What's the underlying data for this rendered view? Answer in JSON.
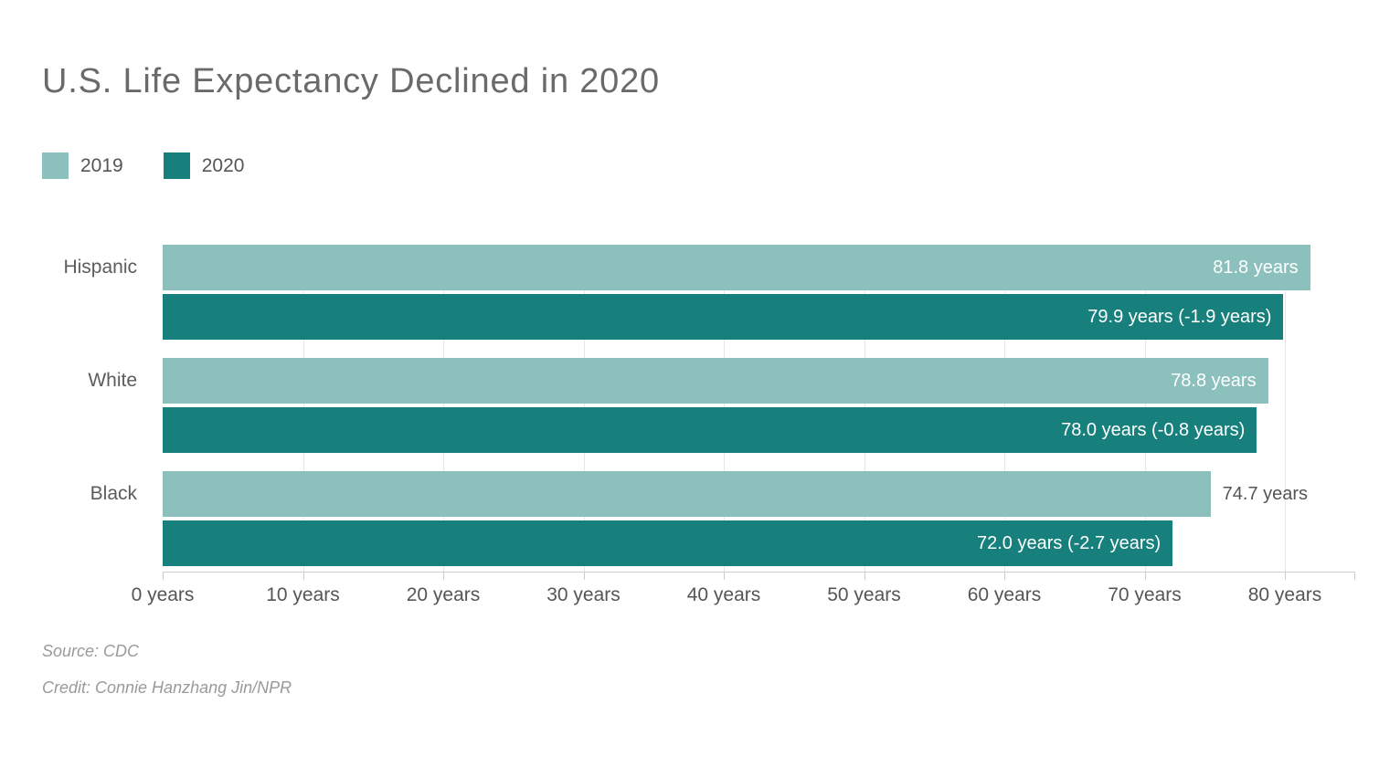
{
  "title": "U.S. Life Expectancy Declined in 2020",
  "legend": {
    "items": [
      {
        "label": "2019",
        "color": "#8CC0BC"
      },
      {
        "label": "2020",
        "color": "#17807C"
      }
    ]
  },
  "source": "Source: CDC",
  "credit": "Credit: Connie Hanzhang Jin/NPR",
  "colors": {
    "series_2019": "#8CC0BC",
    "series_2020": "#17807C",
    "gridline": "#e6e6e6",
    "axis": "#cccccc",
    "title_text": "#6a6a6a",
    "label_text": "#555555",
    "bar_label_inside": "#ffffff",
    "muted_text": "#9a9a9a",
    "background": "#ffffff"
  },
  "chart_data": {
    "type": "bar",
    "orientation": "horizontal",
    "title": "U.S. Life Expectancy Declined in 2020",
    "categories": [
      "Hispanic",
      "White",
      "Black"
    ],
    "series": [
      {
        "name": "2019",
        "color": "#8CC0BC",
        "values": [
          81.8,
          78.8,
          74.7
        ],
        "bar_labels": [
          "81.8 years",
          "78.8 years",
          "74.7 years"
        ],
        "label_inside": [
          true,
          true,
          false
        ]
      },
      {
        "name": "2020",
        "color": "#17807C",
        "values": [
          79.9,
          78.0,
          72.0
        ],
        "bar_labels": [
          "79.9 years (-1.9 years)",
          "78.0 years (-0.8 years)",
          "72.0 years (-2.7 years)"
        ],
        "label_inside": [
          true,
          true,
          true
        ]
      }
    ],
    "x_tick_values": [
      0,
      10,
      20,
      30,
      40,
      50,
      60,
      70,
      80
    ],
    "x_ticks": [
      "0 years",
      "10 years",
      "20 years",
      "30 years",
      "40 years",
      "50 years",
      "60 years",
      "70 years",
      "80 years"
    ],
    "xlim": [
      0,
      84.95
    ],
    "grid": true,
    "legend_position": "top-left",
    "xlabel": "",
    "ylabel": "",
    "units": "years"
  }
}
